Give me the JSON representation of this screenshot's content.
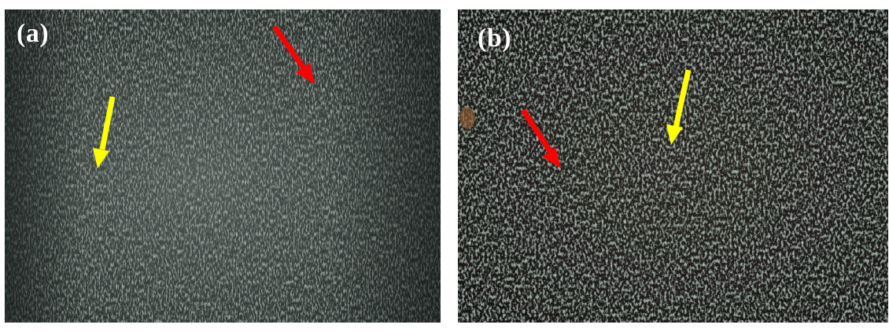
{
  "panels": [
    {
      "label": "(a)",
      "arrows": [
        {
          "color": "#ff0000",
          "meaning": "red-arrow"
        },
        {
          "color": "#ffff00",
          "meaning": "yellow-arrow"
        }
      ],
      "texture_colors": [
        "#2a3330",
        "#56615a",
        "#8c968c"
      ]
    },
    {
      "label": "(b)",
      "arrows": [
        {
          "color": "#ff0000",
          "meaning": "red-arrow"
        },
        {
          "color": "#ffff00",
          "meaning": "yellow-arrow"
        }
      ],
      "texture_colors": [
        "#1c1714",
        "#3d4a3e",
        "#9aa89a"
      ]
    }
  ]
}
